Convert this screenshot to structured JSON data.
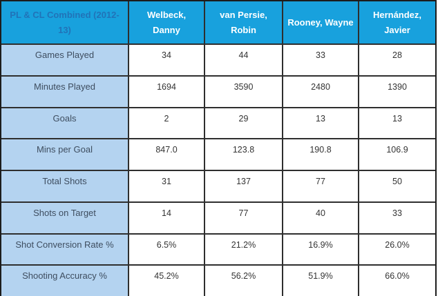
{
  "colors": {
    "header_bg": "#18A1DD",
    "header_text": "#FFFFFF",
    "corner_title_text": "#2173B8",
    "row_label_bg": "#B4D3F0",
    "row_label_text": "#3E4D5F",
    "value_text": "#333333",
    "grid_line": "#2E2E2E"
  },
  "chart_data": {
    "type": "table",
    "title": "PL & CL Combined (2012-13)",
    "columns": [
      "Welbeck, Danny",
      "van Persie, Robin",
      "Rooney, Wayne",
      "Hernández, Javier"
    ],
    "rows": [
      {
        "label": "Games Played",
        "values": [
          "34",
          "44",
          "33",
          "28"
        ]
      },
      {
        "label": "Minutes Played",
        "values": [
          "1694",
          "3590",
          "2480",
          "1390"
        ]
      },
      {
        "label": "Goals",
        "values": [
          "2",
          "29",
          "13",
          "13"
        ]
      },
      {
        "label": "Mins per Goal",
        "values": [
          "847.0",
          "123.8",
          "190.8",
          "106.9"
        ]
      },
      {
        "label": "Total Shots",
        "values": [
          "31",
          "137",
          "77",
          "50"
        ]
      },
      {
        "label": "Shots on Target",
        "values": [
          "14",
          "77",
          "40",
          "33"
        ]
      },
      {
        "label": "Shot Conversion Rate %",
        "values": [
          "6.5%",
          "21.2%",
          "16.9%",
          "26.0%"
        ]
      },
      {
        "label": "Shooting Accuracy %",
        "values": [
          "45.2%",
          "56.2%",
          "51.9%",
          "66.0%"
        ]
      }
    ]
  }
}
